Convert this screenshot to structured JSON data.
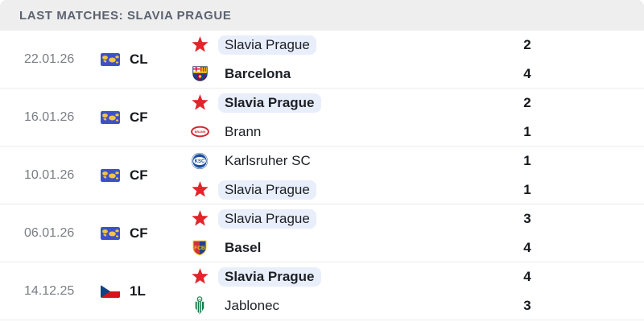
{
  "header": {
    "title": "LAST MATCHES: SLAVIA PRAGUE"
  },
  "colors": {
    "header_bg": "#eeeeee",
    "header_text": "#5b6371",
    "highlight_pill": "#e9eefb",
    "slavia_red": "#e3242b",
    "world_flag_blue": "#3c52c4",
    "world_flag_yellow": "#f5c542",
    "czech_red": "#d7141a",
    "czech_blue": "#11457e",
    "separator": "#ececec"
  },
  "matches": [
    {
      "date": "22.01.26",
      "competition": {
        "code": "CL",
        "flag": "world-flag"
      },
      "teams": [
        {
          "name": "Slavia Prague",
          "logo": "slavia",
          "winner": false,
          "highlighted": true
        },
        {
          "name": "Barcelona",
          "logo": "barcelona",
          "winner": true,
          "highlighted": false
        }
      ],
      "scores": [
        "2",
        "4"
      ]
    },
    {
      "date": "16.01.26",
      "competition": {
        "code": "CF",
        "flag": "world-flag"
      },
      "teams": [
        {
          "name": "Slavia Prague",
          "logo": "slavia",
          "winner": true,
          "highlighted": true
        },
        {
          "name": "Brann",
          "logo": "brann",
          "winner": false,
          "highlighted": false
        }
      ],
      "scores": [
        "2",
        "1"
      ]
    },
    {
      "date": "10.01.26",
      "competition": {
        "code": "CF",
        "flag": "world-flag"
      },
      "teams": [
        {
          "name": "Karlsruher SC",
          "logo": "ksc",
          "winner": false,
          "highlighted": false
        },
        {
          "name": "Slavia Prague",
          "logo": "slavia",
          "winner": false,
          "highlighted": true
        }
      ],
      "scores": [
        "1",
        "1"
      ]
    },
    {
      "date": "06.01.26",
      "competition": {
        "code": "CF",
        "flag": "world-flag"
      },
      "teams": [
        {
          "name": "Slavia Prague",
          "logo": "slavia",
          "winner": false,
          "highlighted": true
        },
        {
          "name": "Basel",
          "logo": "basel",
          "winner": true,
          "highlighted": false
        }
      ],
      "scores": [
        "3",
        "4"
      ]
    },
    {
      "date": "14.12.25",
      "competition": {
        "code": "1L",
        "flag": "czech-flag"
      },
      "teams": [
        {
          "name": "Slavia Prague",
          "logo": "slavia",
          "winner": true,
          "highlighted": true
        },
        {
          "name": "Jablonec",
          "logo": "jablonec",
          "winner": false,
          "highlighted": false
        }
      ],
      "scores": [
        "4",
        "3"
      ]
    }
  ]
}
